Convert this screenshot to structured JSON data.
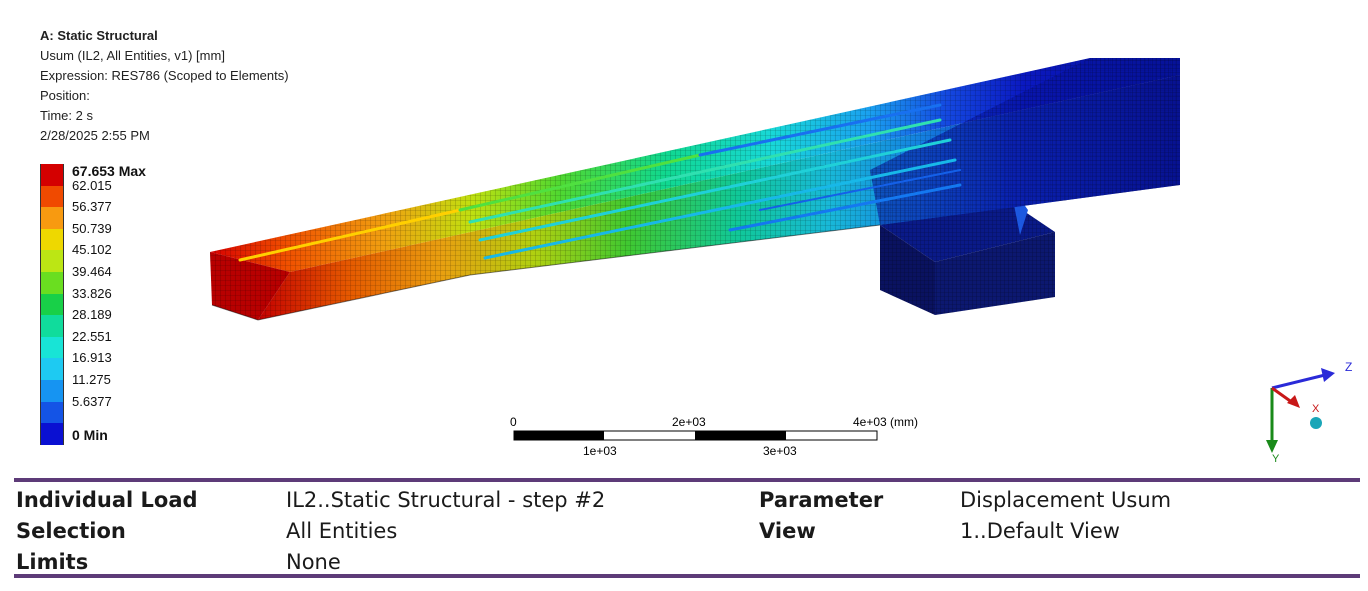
{
  "header": {
    "analysis": "A: Static Structural",
    "result": "Usum (IL2, All Entities, v1) [mm]",
    "expression": "Expression: RES786 (Scoped to Elements)",
    "position": "Position:",
    "time": "Time: 2 s",
    "date": "2/28/2025 2:55 PM"
  },
  "legend": {
    "items": [
      {
        "label": "67.653 Max",
        "color": "#d40000",
        "bold": true
      },
      {
        "label": "62.015",
        "color": "#f04a00",
        "bold": false
      },
      {
        "label": "56.377",
        "color": "#f89a10",
        "bold": false
      },
      {
        "label": "50.739",
        "color": "#eed800",
        "bold": false
      },
      {
        "label": "45.102",
        "color": "#bce614",
        "bold": false
      },
      {
        "label": "39.464",
        "color": "#6ade20",
        "bold": false
      },
      {
        "label": "33.826",
        "color": "#18d048",
        "bold": false
      },
      {
        "label": "28.189",
        "color": "#10dc9c",
        "bold": false
      },
      {
        "label": "22.551",
        "color": "#18e4d6",
        "bold": false
      },
      {
        "label": "16.913",
        "color": "#1ecaf2",
        "bold": false
      },
      {
        "label": "11.275",
        "color": "#1694f2",
        "bold": false
      },
      {
        "label": "5.6377",
        "color": "#1454e6",
        "bold": false
      },
      {
        "label": "0 Min",
        "color": "#0a10d2",
        "bold": true
      }
    ]
  },
  "scale": {
    "top_labels": [
      "0",
      "2e+03",
      "4e+03 (mm)"
    ],
    "bottom_labels": [
      "1e+03",
      "3e+03"
    ]
  },
  "triad": {
    "z": "Z",
    "x": "X",
    "y": "Y",
    "z_color": "#2a2ad8",
    "x_color": "#c81818",
    "y_color": "#1a8a1a",
    "origin_color": "#1aa6b8"
  },
  "info": {
    "individual_load_label": "Individual Load",
    "individual_load_value": "IL2..Static Structural - step #2",
    "parameter_label": "Parameter",
    "parameter_value": "Displacement Usum",
    "selection_label": "Selection",
    "selection_value": "All Entities",
    "view_label": "View",
    "view_value": "1..Default View",
    "limits_label": "Limits",
    "limits_value": "None",
    "border_color": "#5d3b78"
  }
}
